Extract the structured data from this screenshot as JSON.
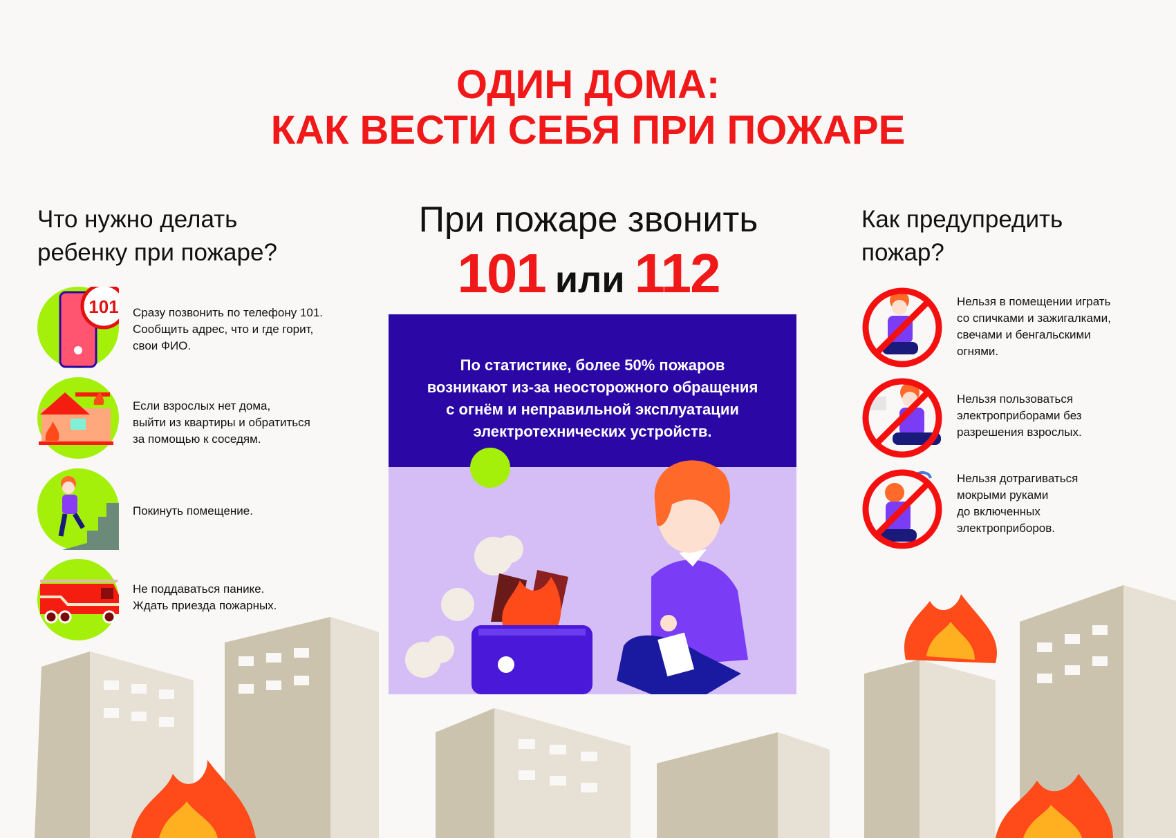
{
  "title": {
    "line1": "ОДИН ДОМА:",
    "line2": "КАК ВЕСТИ СЕБЯ ПРИ ПОЖАРЕ"
  },
  "left": {
    "heading_line1": "Что нужно делать",
    "heading_line2": "ребенку при пожаре?",
    "items": [
      {
        "icon": "phone-101-icon",
        "badge": "101",
        "lines": [
          "Сразу позвонить по телефону 101.",
          "Сообщить адрес, что и где горит,",
          "свои ФИО."
        ]
      },
      {
        "icon": "burning-house-icon",
        "lines": [
          "Если взрослых нет дома,",
          "выйти из квартиры и обратиться",
          "за помощью к соседям."
        ]
      },
      {
        "icon": "running-child-icon",
        "lines": [
          "Покинуть помещение."
        ]
      },
      {
        "icon": "fire-truck-icon",
        "lines": [
          "Не поддаваться панике.",
          "Ждать приезда пожарных."
        ]
      }
    ]
  },
  "center": {
    "heading": "При пожаре звонить",
    "number1": "101",
    "or": "или",
    "number2": "112",
    "statistic_lines": [
      "По статистике, более 50% пожаров",
      "возникают из-за неосторожного обращения",
      "с огнём и неправильной эксплуатации",
      "электротехнических устройств."
    ]
  },
  "right": {
    "heading_line1": "Как предупредить",
    "heading_line2": "пожар?",
    "items": [
      {
        "icon": "no-matches-icon",
        "lines": [
          "Нельзя в помещении играть",
          "со спичками и зажигалками,",
          "свечами и бенгальскими",
          "огнями."
        ]
      },
      {
        "icon": "no-electric-devices-icon",
        "lines": [
          "Нельзя пользоваться",
          "электроприборами без",
          "разрешения взрослых."
        ]
      },
      {
        "icon": "no-wet-hands-icon",
        "lines": [
          "Нельзя дотрагиваться",
          "мокрыми руками",
          "до включенных",
          "электроприборов."
        ]
      }
    ]
  },
  "colors": {
    "accent": "#f01818",
    "green": "#a4f00a",
    "purple_dark": "#2b07a6",
    "purple_light": "#d5bdf6",
    "building": "#cbc3ad"
  }
}
